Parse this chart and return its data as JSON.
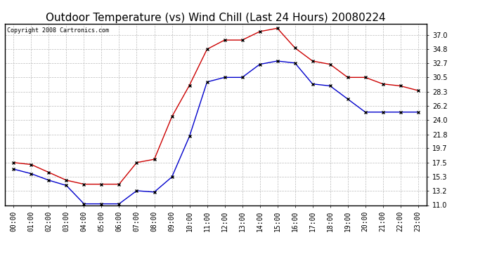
{
  "title": "Outdoor Temperature (vs) Wind Chill (Last 24 Hours) 20080224",
  "copyright": "Copyright 2008 Cartronics.com",
  "hours": [
    "00:00",
    "01:00",
    "02:00",
    "03:00",
    "04:00",
    "05:00",
    "06:00",
    "07:00",
    "08:00",
    "09:00",
    "10:00",
    "11:00",
    "12:00",
    "13:00",
    "14:00",
    "15:00",
    "16:00",
    "17:00",
    "18:00",
    "19:00",
    "20:00",
    "21:00",
    "22:00",
    "23:00"
  ],
  "temp": [
    17.5,
    17.2,
    16.0,
    14.8,
    14.2,
    14.2,
    14.2,
    17.5,
    18.0,
    24.5,
    29.3,
    34.8,
    36.2,
    36.2,
    37.5,
    38.0,
    35.0,
    33.0,
    32.5,
    30.5,
    30.5,
    29.5,
    29.2,
    28.5
  ],
  "windchill": [
    16.5,
    15.8,
    14.8,
    14.0,
    11.2,
    11.2,
    11.2,
    13.2,
    13.0,
    15.3,
    21.5,
    29.8,
    30.5,
    30.5,
    32.5,
    33.0,
    32.7,
    29.5,
    29.2,
    27.2,
    25.2,
    25.2,
    25.2,
    25.2
  ],
  "temp_color": "#cc0000",
  "windchill_color": "#0000cc",
  "ylim_min": 11.0,
  "ylim_max": 38.7,
  "yticks": [
    11.0,
    13.2,
    15.3,
    17.5,
    19.7,
    21.8,
    24.0,
    26.2,
    28.3,
    30.5,
    32.7,
    34.8,
    37.0
  ],
  "background_color": "#ffffff",
  "plot_bg_color": "#ffffff",
  "grid_color": "#bbbbbb",
  "title_fontsize": 11,
  "copyright_fontsize": 6,
  "tick_fontsize": 7
}
